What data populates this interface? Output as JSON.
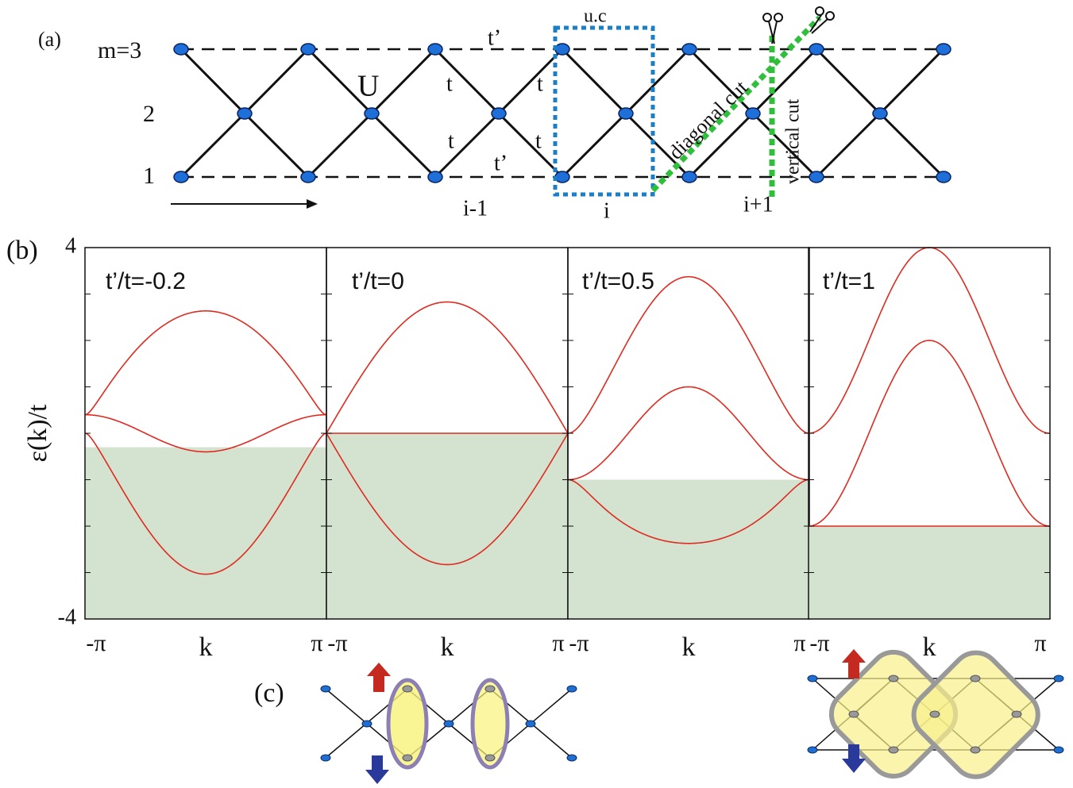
{
  "panel_a": {
    "label": "(a)",
    "rows": [
      "m=3",
      "2",
      "1"
    ],
    "t_prime_top": "t’",
    "t_prime_bottom": "t’",
    "interaction": "U",
    "hoppings": [
      "t",
      "t",
      "t",
      "t"
    ],
    "unit_cell": "u.c",
    "diagonal_cut": "diagonal cut",
    "vertical_cut": "vertical cut",
    "cells": [
      "i-1",
      "i",
      "i+1"
    ]
  },
  "panel_b": {
    "label": "(b)",
    "y_label": "ε(k)/t",
    "x_label": "k",
    "ylim": [
      -4,
      4
    ],
    "yticks": [
      -4,
      4
    ],
    "minor_yticks": [
      -3,
      -2,
      -1,
      0,
      1,
      2,
      3
    ],
    "xlim": [
      -3.14159,
      3.14159
    ],
    "xticks": [
      {
        "value": -3.14159,
        "label": "-π"
      },
      {
        "value": 3.14159,
        "label": "π"
      }
    ],
    "band_color": "#e02a1f",
    "fill_color": "#d4e3d0",
    "panels": [
      {
        "label": "t’/t=-0.2",
        "t_prime": -0.2,
        "filled_below": -0.3
      },
      {
        "label": "t’/t=0",
        "t_prime": 0,
        "filled_below": 0
      },
      {
        "label": "t’/t=0.5",
        "t_prime": 0.5,
        "filled_below": -1
      },
      {
        "label": "t’/t=1",
        "t_prime": 1,
        "filled_below": -2
      }
    ]
  },
  "panel_c": {
    "label": "(c)"
  }
}
